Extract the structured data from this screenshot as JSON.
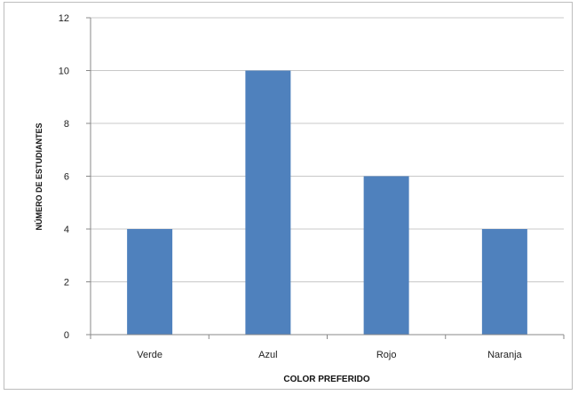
{
  "chart_data": {
    "type": "bar",
    "categories": [
      "Verde",
      "Azul",
      "Rojo",
      "Naranja"
    ],
    "values": [
      4,
      10,
      6,
      4
    ],
    "title": "",
    "xlabel": "COLOR PREFERIDO",
    "ylabel": "NÚMERO DE ESTUDIANTES",
    "ylim": [
      0,
      12
    ],
    "yticks": [
      0,
      2,
      4,
      6,
      8,
      10,
      12
    ],
    "grid": true,
    "legend": "none",
    "bar_color": "#4f81bd",
    "grid_color": "#c8c8c8"
  }
}
